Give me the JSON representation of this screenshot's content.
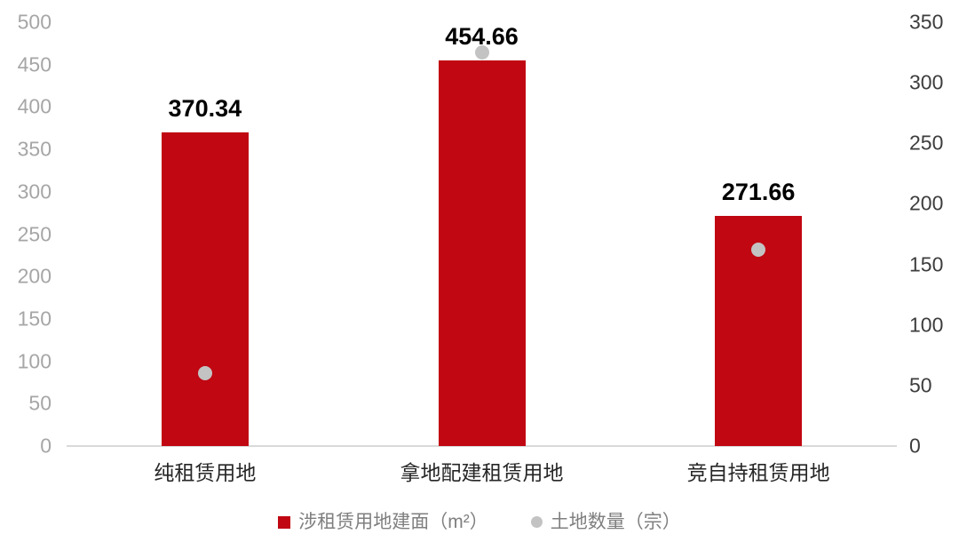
{
  "chart_data": {
    "type": "bar",
    "subtype": "combo-bar-scatter-dual-axis",
    "title": "",
    "categories": [
      "纯租赁用地",
      "拿地配建租赁用地",
      "竞自持租赁用地"
    ],
    "series": [
      {
        "name": "涉租赁用地建面（m²）",
        "type": "bar",
        "axis": "left",
        "color": "#c00712",
        "values": [
          370.34,
          454.66,
          271.66
        ],
        "value_labels": [
          "370.34",
          "454.66",
          "271.66"
        ]
      },
      {
        "name": "土地数量（宗）",
        "type": "scatter",
        "axis": "right",
        "color": "#c3c3c3",
        "values": [
          60,
          325,
          162
        ],
        "values_estimated": true
      }
    ],
    "left_axis": {
      "min": 0,
      "max": 500,
      "step": 50,
      "tick_labels": [
        "500",
        "450",
        "400",
        "350",
        "300",
        "250",
        "200",
        "150",
        "100",
        "50",
        "0"
      ],
      "label_color": "#a6a6a6"
    },
    "right_axis": {
      "min": 0,
      "max": 350,
      "step": 50,
      "tick_labels": [
        "350",
        "300",
        "250",
        "200",
        "150",
        "100",
        "50",
        "0"
      ],
      "label_color": "#3d3d3d"
    },
    "grid": false,
    "legend_position": "bottom",
    "baseline_color": "#d9d9d9",
    "background_color": "#ffffff"
  },
  "legend": {
    "items": [
      {
        "label": "涉租赁用地建面（m²）",
        "swatch": "square",
        "color": "#c00712"
      },
      {
        "label": "土地数量（宗）",
        "swatch": "circle",
        "color": "#c3c3c3"
      }
    ]
  }
}
